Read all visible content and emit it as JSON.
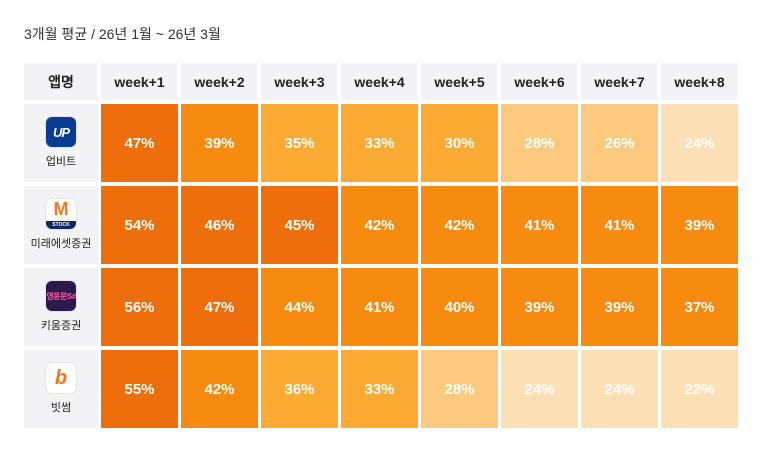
{
  "subtitle": "3개월 평균 / 26년 1월 ~ 26년 3월",
  "chart_data": {
    "type": "heatmap",
    "row_header": "앱명",
    "columns": [
      "week+1",
      "week+2",
      "week+3",
      "week+4",
      "week+5",
      "week+6",
      "week+7",
      "week+8"
    ],
    "rows": [
      {
        "app": "업비트",
        "icon": "upbit-logo-icon",
        "logo_text": "UP",
        "values": [
          47,
          39,
          35,
          33,
          30,
          28,
          26,
          24
        ]
      },
      {
        "app": "미래에셋증권",
        "icon": "mirae-logo-icon",
        "logo_text": "M",
        "logo_sub": "STOCK",
        "values": [
          54,
          46,
          45,
          42,
          42,
          41,
          41,
          39
        ]
      },
      {
        "app": "키움증권",
        "icon": "kiwoom-logo-icon",
        "logo_text": "영웅문S#",
        "values": [
          56,
          47,
          44,
          41,
          40,
          39,
          39,
          37
        ]
      },
      {
        "app": "빗썸",
        "icon": "bithumb-logo-icon",
        "logo_text": "b",
        "values": [
          55,
          42,
          36,
          33,
          28,
          24,
          24,
          22
        ]
      }
    ],
    "unit": "%",
    "colors": {
      "darkest": "#ed6e0a",
      "dark": "#f68b0f",
      "mid": "#fbaa34",
      "light": "#fcc97f",
      "lightest": "#fde0b6",
      "header_bg": "#f3f3f5"
    }
  }
}
